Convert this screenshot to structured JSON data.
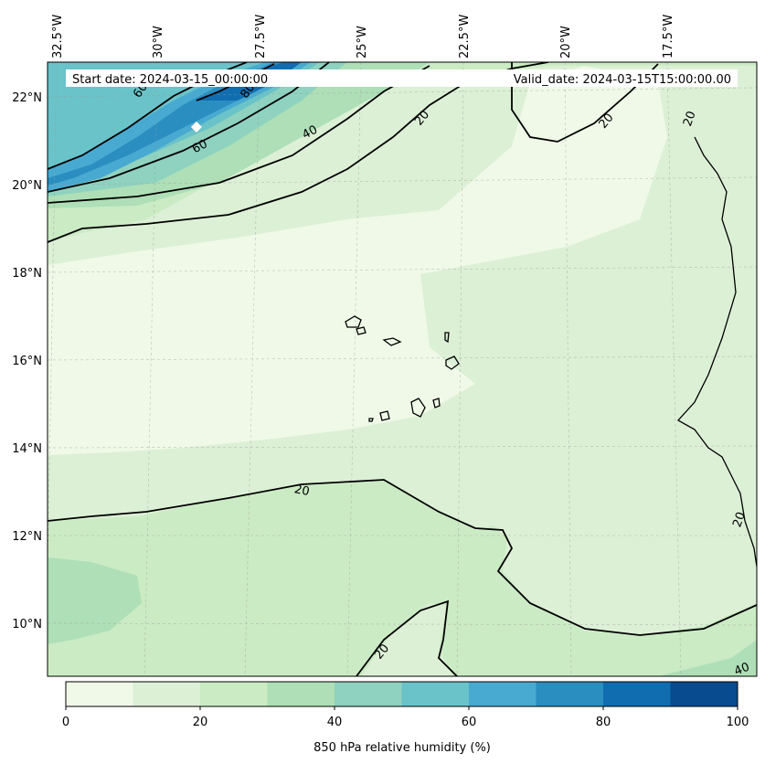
{
  "header": {
    "start_label": "Start date: 2024-03-15_00:00:00",
    "valid_label": "Valid_date: 2024-03-15T15:00:00.00"
  },
  "axes": {
    "longitude_labels": [
      "32.5°W",
      "30°W",
      "27.5°W",
      "25°W",
      "22.5°W",
      "20°W",
      "17.5°W"
    ],
    "latitude_labels": [
      "22°N",
      "20°N",
      "18°N",
      "16°N",
      "14°N",
      "12°N",
      "10°N"
    ]
  },
  "contour_labels": [
    "60",
    "80",
    "60",
    "40",
    "20",
    "20",
    "20",
    "20",
    "20",
    "20",
    "40"
  ],
  "colorbar": {
    "label": "850 hPa relative humidity (%)",
    "tick_labels": [
      "0",
      "20",
      "40",
      "60",
      "80",
      "100"
    ],
    "levels": [
      0,
      10,
      20,
      30,
      40,
      50,
      60,
      70,
      80,
      90,
      100
    ],
    "colors": [
      "#f0f9e8",
      "#dcf0d6",
      "#cbebc4",
      "#aedfb6",
      "#8ed2bf",
      "#6ac3c8",
      "#48aad0",
      "#2a8ec0",
      "#106db0",
      "#084b8f"
    ]
  },
  "map": {
    "field": "850 hPa relative humidity",
    "units": "%",
    "marker": "white diamond"
  }
}
